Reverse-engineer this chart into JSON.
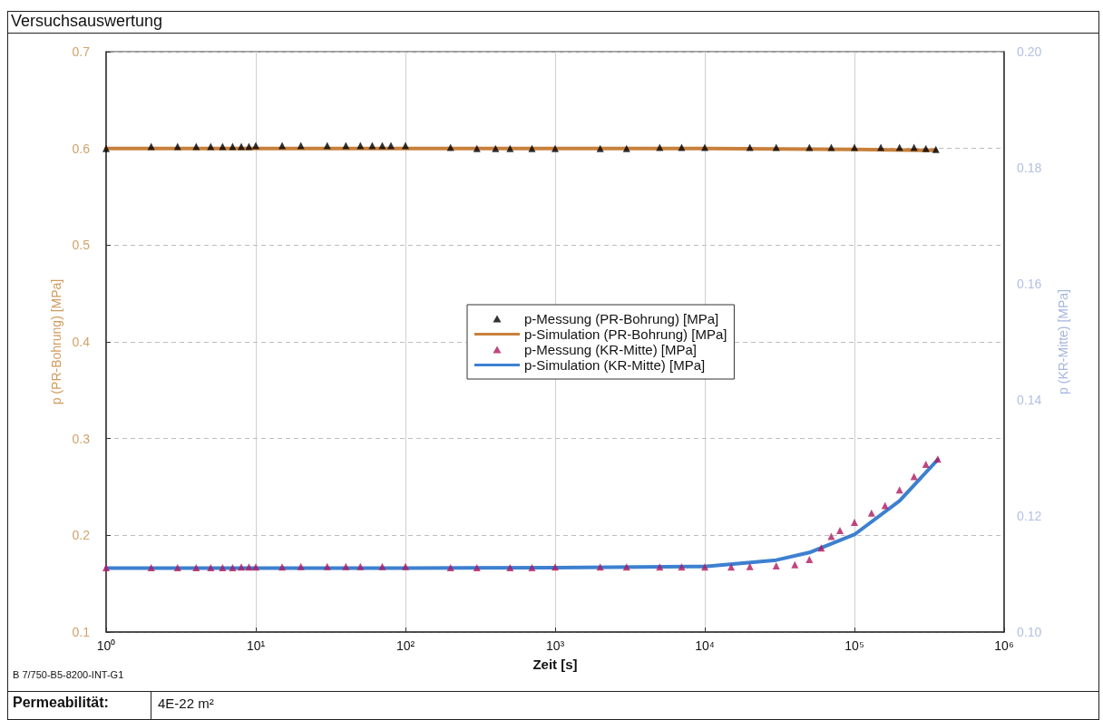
{
  "chart_data": {
    "type": "line",
    "title": "Versuchsauswertung",
    "xlabel": "Zeit [s]",
    "ylabel": "p (PR-Bohrung) [MPa]",
    "y2label": "p (KR-Mitte) [MPa]",
    "log": "x",
    "grid": true,
    "legend": "center",
    "xlim": [
      1,
      1000000
    ],
    "xticks": [
      {
        "value": 1,
        "label": "10⁰"
      },
      {
        "value": 10,
        "label": "10¹"
      },
      {
        "value": 100,
        "label": "10²"
      },
      {
        "value": 1000,
        "label": "10³"
      },
      {
        "value": 10000,
        "label": "10⁴"
      },
      {
        "value": 100000,
        "label": "10⁵"
      },
      {
        "value": 1000000,
        "label": "10⁶"
      }
    ],
    "ylim": [
      0.1,
      0.7
    ],
    "yticks": [
      0.1,
      0.2,
      0.3,
      0.4,
      0.5,
      0.6,
      0.7
    ],
    "y2lim": [
      0.1,
      0.2
    ],
    "y2ticks": [
      {
        "value": 0.1,
        "label": "0.10"
      },
      {
        "value": 0.12,
        "label": "0.12"
      },
      {
        "value": 0.14,
        "label": "0.14"
      },
      {
        "value": 0.16,
        "label": "0.16"
      },
      {
        "value": 0.18,
        "label": "0.18"
      },
      {
        "value": 0.2,
        "label": "0.20"
      }
    ],
    "series": [
      {
        "name": "p-Messung (PR-Bohrung) [MPa]",
        "type": "scatter",
        "marker": "triangle",
        "color": "#000000",
        "x": [
          1,
          2,
          3,
          4,
          5,
          6,
          7,
          8,
          9,
          10,
          15,
          20,
          30,
          40,
          50,
          60,
          70,
          80,
          100,
          200,
          300,
          400,
          500,
          700,
          1000,
          2000,
          3000,
          5000,
          7000,
          10000,
          20000,
          30000,
          50000,
          70000,
          100000,
          150000,
          200000,
          250000,
          300000,
          350000
        ],
        "values": [
          0.6,
          0.602,
          0.602,
          0.602,
          0.602,
          0.602,
          0.602,
          0.602,
          0.602,
          0.603,
          0.603,
          0.603,
          0.603,
          0.603,
          0.603,
          0.603,
          0.603,
          0.603,
          0.603,
          0.601,
          0.6,
          0.6,
          0.6,
          0.6,
          0.6,
          0.6,
          0.6,
          0.601,
          0.601,
          0.601,
          0.601,
          0.601,
          0.601,
          0.601,
          0.601,
          0.601,
          0.601,
          0.601,
          0.6,
          0.599
        ]
      },
      {
        "name": "p-Simulation (PR-Bohrung) [MPa]",
        "color": "#c8803c",
        "x": [
          1,
          10,
          100,
          1000,
          10000,
          100000,
          350000
        ],
        "values": [
          0.6,
          0.6,
          0.6,
          0.6,
          0.6,
          0.599,
          0.598
        ]
      },
      {
        "name": "p-Messung (KR-Mitte) [MPa]",
        "type": "scatter",
        "marker": "triangle",
        "axis": "y2",
        "color": "#b0185e",
        "x": [
          1,
          2,
          3,
          4,
          5,
          6,
          7,
          8,
          9,
          10,
          15,
          20,
          30,
          40,
          50,
          70,
          100,
          200,
          300,
          500,
          700,
          1000,
          2000,
          3000,
          5000,
          7000,
          10000,
          15000,
          20000,
          30000,
          40000,
          50000,
          60000,
          70000,
          80000,
          100000,
          130000,
          160000,
          200000,
          250000,
          300000,
          360000
        ],
        "values": [
          0.1111,
          0.1111,
          0.1111,
          0.1111,
          0.1111,
          0.1111,
          0.1111,
          0.1112,
          0.1112,
          0.1112,
          0.1112,
          0.1113,
          0.1113,
          0.1113,
          0.1113,
          0.1113,
          0.1113,
          0.1111,
          0.1111,
          0.1111,
          0.1111,
          0.1112,
          0.1112,
          0.1112,
          0.1112,
          0.1112,
          0.1112,
          0.1112,
          0.1113,
          0.1114,
          0.1116,
          0.1125,
          0.1145,
          0.1165,
          0.1175,
          0.1189,
          0.1205,
          0.1218,
          0.1245,
          0.1268,
          0.1289,
          0.1298
        ]
      },
      {
        "name": "p-Simulation (KR-Mitte) [MPa]",
        "axis": "y2",
        "color": "#3d80d0",
        "x": [
          1,
          10,
          100,
          1000,
          10000,
          30000,
          50000,
          100000,
          200000,
          360000
        ],
        "values": [
          0.111,
          0.111,
          0.111,
          0.1111,
          0.1113,
          0.1124,
          0.1137,
          0.1168,
          0.1226,
          0.1297
        ]
      }
    ],
    "annotations": [
      "B 7/750-B5-8200-INT-G1",
      "Permeabilität:",
      "4E-22 m²"
    ]
  }
}
